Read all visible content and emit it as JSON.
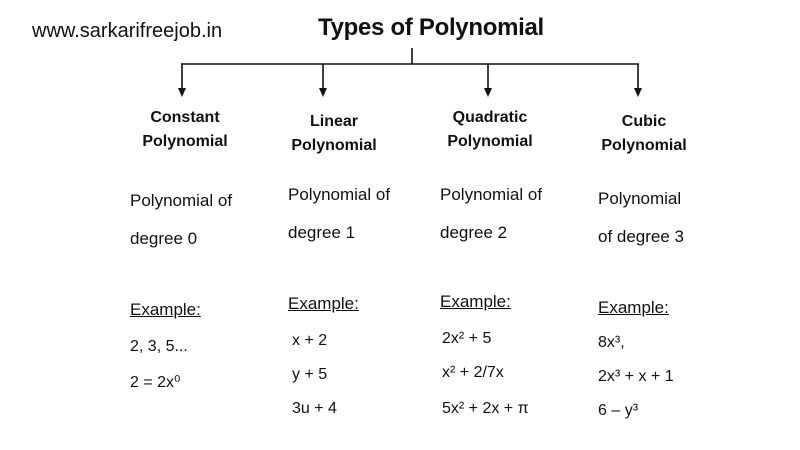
{
  "watermark": "www.sarkarifreejob.in",
  "title": "Types of Polynomial",
  "example_label": "Example:",
  "columns": [
    {
      "head1": "Constant",
      "head2": "Polynomial",
      "desc1": "Polynomial of",
      "desc2": "degree 0",
      "examples": [
        "2, 3, 5...",
        "2 = 2x⁰"
      ]
    },
    {
      "head1": "Linear",
      "head2": "Polynomial",
      "desc1": "Polynomial of",
      "desc2": "degree 1",
      "examples": [
        "x + 2",
        "y + 5",
        "3u + 4"
      ]
    },
    {
      "head1": "Quadratic",
      "head2": "Polynomial",
      "desc1": "Polynomial of",
      "desc2": "degree 2",
      "examples": [
        "2x² + 5",
        "x² + 2/7x",
        "5x² + 2x + π"
      ]
    },
    {
      "head1": "Cubic",
      "head2": "Polynomial",
      "desc1": "Polynomial",
      "desc2": "of degree 3",
      "examples": [
        "8x³,",
        "2x³ + x + 1",
        "6 – y³"
      ]
    }
  ]
}
